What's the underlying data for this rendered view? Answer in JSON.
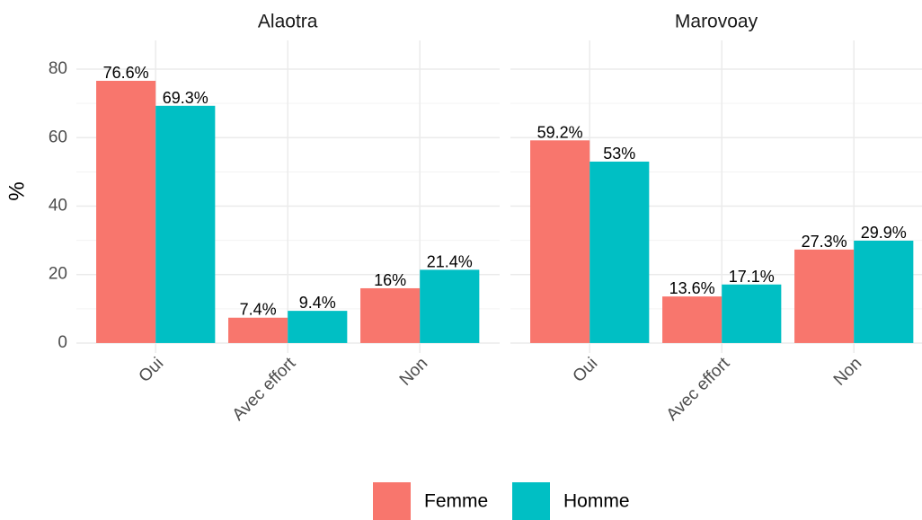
{
  "chart_data": [
    {
      "type": "bar",
      "title": "Alaotra",
      "ylabel": "%",
      "categories": [
        "Oui",
        "Avec effort",
        "Non"
      ],
      "series": [
        {
          "name": "Femme",
          "color": "#F8766D",
          "values": [
            76.6,
            7.4,
            16
          ],
          "value_labels": [
            "76.6%",
            "7.4%",
            "16%"
          ]
        },
        {
          "name": "Homme",
          "color": "#00BFC4",
          "values": [
            69.3,
            9.4,
            21.4
          ],
          "value_labels": [
            "69.3%",
            "9.4%",
            "21.4%"
          ]
        }
      ],
      "ylim": [
        -2.9,
        88.4
      ],
      "yticks": [
        0,
        20,
        40,
        60,
        80
      ],
      "yminor": [
        10,
        30,
        50,
        70
      ],
      "grid": true
    },
    {
      "type": "bar",
      "title": "Marovoay",
      "categories": [
        "Oui",
        "Avec effort",
        "Non"
      ],
      "series": [
        {
          "color": "#F8766D",
          "values": [
            59.2,
            13.6,
            27.3
          ],
          "value_labels": [
            "59.2%",
            "13.6%",
            "27.3%"
          ]
        },
        {
          "color": "#00BFC4",
          "values": [
            53,
            17.1,
            29.9
          ],
          "value_labels": [
            "53%",
            "17.1%",
            "29.9%"
          ]
        }
      ],
      "ylim": [
        -2.9,
        88.4
      ],
      "yticks": [
        0,
        20,
        40,
        60,
        80
      ],
      "yminor": [
        10,
        30,
        50,
        70
      ],
      "grid": true
    }
  ]
}
